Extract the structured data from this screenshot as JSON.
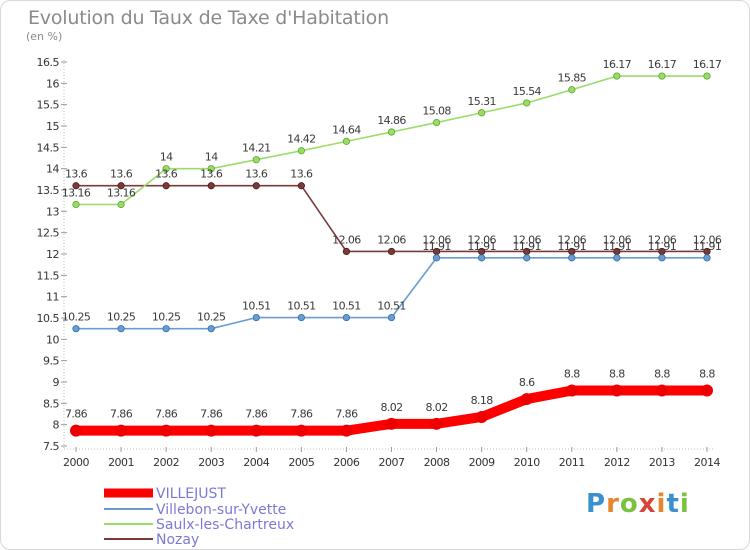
{
  "header": {
    "title": "Evolution du Taux de Taxe d'Habitation",
    "subtitle": "(en %)"
  },
  "logo": {
    "text": "Proxiti",
    "colors": [
      "#3a8fd1",
      "#e8862c",
      "#7cc040",
      "#d9443a",
      "#e8862c",
      "#3a8fd1",
      "#7cc040"
    ]
  },
  "chart_data": {
    "type": "line",
    "title": "Evolution du Taux de Taxe d'Habitation",
    "ylabel": "(en %)",
    "x": [
      "2000",
      "2001",
      "2002",
      "2003",
      "2004",
      "2005",
      "2006",
      "2007",
      "2008",
      "2009",
      "2010",
      "2011",
      "2012",
      "2013",
      "2014"
    ],
    "ylim": [
      7.5,
      16.5
    ],
    "yticks": [
      "7.5",
      "8",
      "8.5",
      "9",
      "9.5",
      "10",
      "10.5",
      "11",
      "11.5",
      "12",
      "12.5",
      "13",
      "13.5",
      "14",
      "14.5",
      "15",
      "15.5",
      "16",
      "16.5"
    ],
    "grid": false,
    "legend_position": "bottom-left",
    "series": [
      {
        "name": "VILLEJUST",
        "color": "#ff0000",
        "values": [
          7.86,
          7.86,
          7.86,
          7.86,
          7.86,
          7.86,
          7.86,
          8.02,
          8.02,
          8.18,
          8.6,
          8.8,
          8.8,
          8.8,
          8.8
        ],
        "labels": [
          "7.86",
          "7.86",
          "7.86",
          "7.86",
          "7.86",
          "7.86",
          "7.86",
          "8.02",
          "8.02",
          "8.18",
          "8.6",
          "8.8",
          "8.8",
          "8.8",
          "8.8"
        ]
      },
      {
        "name": "Villebon-sur-Yvette",
        "color": "#6b9cd0",
        "values": [
          10.25,
          10.25,
          10.25,
          10.25,
          10.51,
          10.51,
          10.51,
          10.51,
          11.91,
          11.91,
          11.91,
          11.91,
          11.91,
          11.91,
          11.91
        ],
        "labels": [
          "10.25",
          "10.25",
          "10.25",
          "10.25",
          "10.51",
          "10.51",
          "10.51",
          "10.51",
          "11.91",
          "11.91",
          "11.91",
          "11.91",
          "11.91",
          "11.91",
          "11.91"
        ]
      },
      {
        "name": "Saulx-les-Chartreux",
        "color": "#99dd66",
        "values": [
          13.16,
          13.16,
          14,
          14,
          14.21,
          14.42,
          14.64,
          14.86,
          15.08,
          15.31,
          15.54,
          15.85,
          16.17,
          16.17,
          16.17
        ],
        "labels": [
          "13.16",
          "13.16",
          "14",
          "14",
          "14.21",
          "14.42",
          "14.64",
          "14.86",
          "15.08",
          "15.31",
          "15.54",
          "15.85",
          "16.17",
          "16.17",
          "16.17"
        ]
      },
      {
        "name": "Nozay",
        "color": "#7a3a3a",
        "values": [
          13.6,
          13.6,
          13.6,
          13.6,
          13.6,
          13.6,
          12.06,
          12.06,
          12.06,
          12.06,
          12.06,
          12.06,
          12.06,
          12.06,
          12.06
        ],
        "labels": [
          "13.6",
          "13.6",
          "13.6",
          "13.6",
          "13.6",
          "13.6",
          "12.06",
          "12.06",
          "12.06",
          "12.06",
          "12.06",
          "12.06",
          "12.06",
          "12.06",
          "12.06"
        ]
      }
    ]
  }
}
